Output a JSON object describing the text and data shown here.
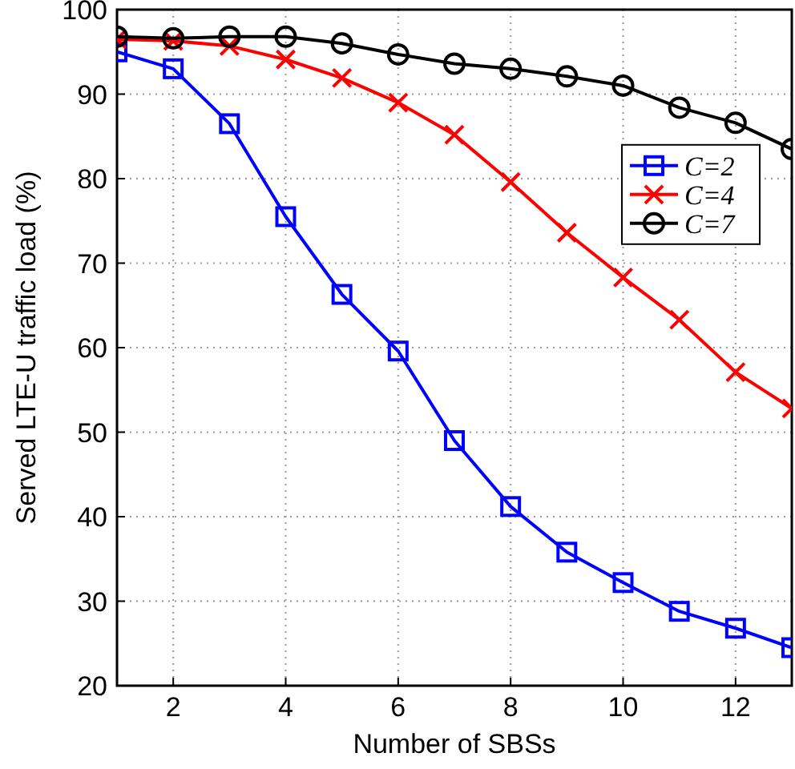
{
  "chart_data": {
    "type": "line",
    "xlabel": "Number of SBSs",
    "ylabel": "Served LTE-U traffic load (%)",
    "x": [
      1,
      2,
      3,
      4,
      5,
      6,
      7,
      8,
      9,
      10,
      11,
      12,
      13
    ],
    "series": [
      {
        "name": "C=2",
        "color": "#0000ff",
        "marker": "square",
        "values": [
          95,
          93,
          86.5,
          75.5,
          66.3,
          59.6,
          49,
          41.2,
          35.8,
          32.2,
          28.8,
          26.8,
          24.5
        ]
      },
      {
        "name": "C=4",
        "color": "#ff0000",
        "marker": "cross",
        "values": [
          96.5,
          96.3,
          95.7,
          94.1,
          91.9,
          89,
          85.2,
          79.6,
          73.6,
          68.3,
          63.3,
          57.1,
          52.8
        ]
      },
      {
        "name": "C=7",
        "color": "#000000",
        "marker": "circle",
        "values": [
          96.8,
          96.6,
          96.8,
          96.8,
          96,
          94.7,
          93.6,
          93,
          92.1,
          91,
          88.4,
          86.6,
          83.5
        ]
      }
    ],
    "xlim": [
      1,
      13
    ],
    "xticks": [
      2,
      4,
      6,
      8,
      10,
      12
    ],
    "ylim": [
      20,
      100
    ],
    "yticks": [
      20,
      30,
      40,
      50,
      60,
      70,
      80,
      90,
      100
    ],
    "grid": true,
    "legend": "right",
    "line_style": "solid"
  }
}
